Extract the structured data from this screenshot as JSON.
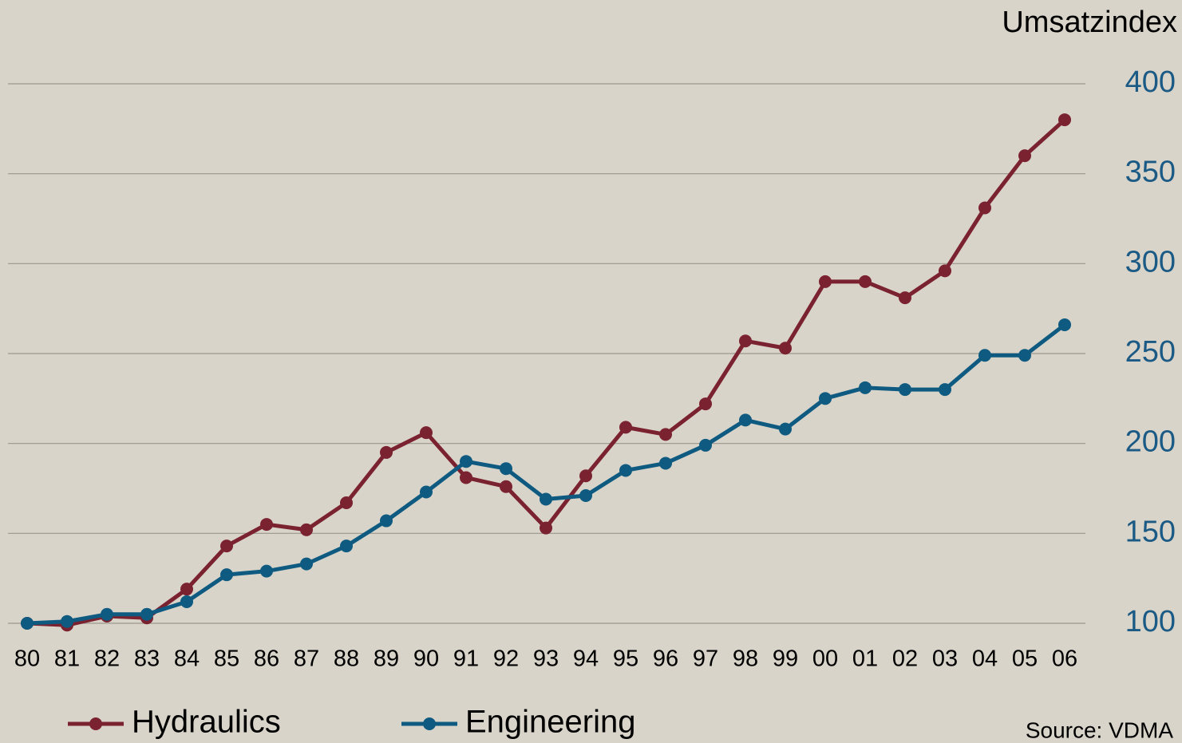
{
  "chart_data": {
    "type": "line",
    "y_axis_label": "Umsatzindex",
    "source": "Source: VDMA",
    "categories": [
      "80",
      "81",
      "82",
      "83",
      "84",
      "85",
      "86",
      "87",
      "88",
      "89",
      "90",
      "91",
      "92",
      "93",
      "94",
      "95",
      "96",
      "97",
      "98",
      "99",
      "00",
      "01",
      "02",
      "03",
      "04",
      "05",
      "06"
    ],
    "series": [
      {
        "name": "Hydraulics",
        "color": "#7b2230",
        "values": [
          100,
          99,
          104,
          103,
          119,
          143,
          155,
          152,
          167,
          195,
          206,
          181,
          176,
          153,
          182,
          209,
          205,
          222,
          257,
          253,
          290,
          290,
          281,
          296,
          331,
          360,
          380
        ]
      },
      {
        "name": "Engineering",
        "color": "#0e5a80",
        "values": [
          100,
          101,
          105,
          105,
          112,
          127,
          129,
          133,
          143,
          157,
          173,
          190,
          186,
          169,
          171,
          185,
          189,
          199,
          213,
          208,
          225,
          231,
          230,
          230,
          249,
          249,
          266
        ]
      }
    ],
    "ylim": [
      100,
      400
    ],
    "yticks": [
      100,
      150,
      200,
      250,
      300,
      350,
      400
    ],
    "grid": true
  }
}
